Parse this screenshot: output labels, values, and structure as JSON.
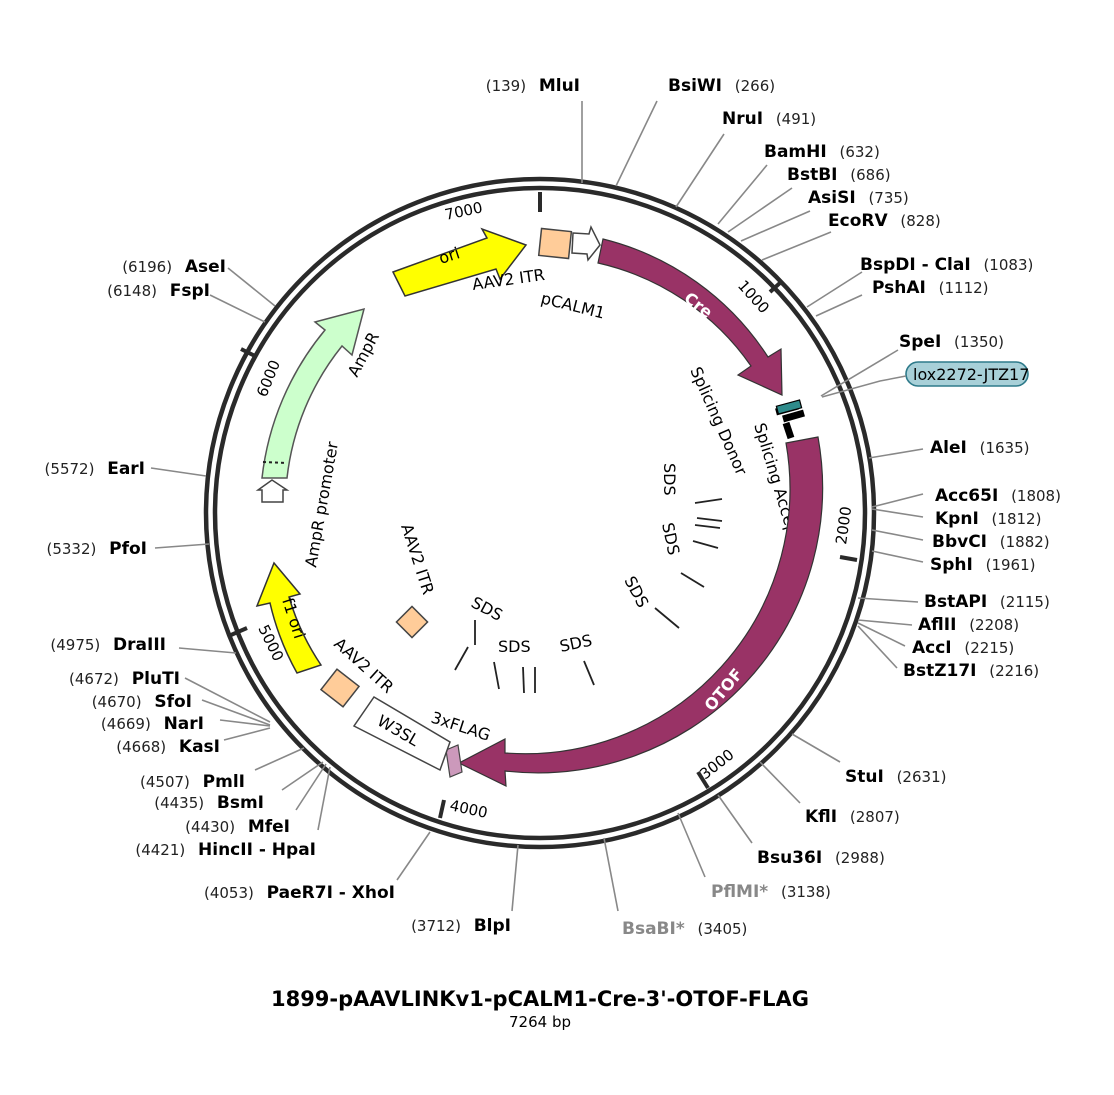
{
  "title": "1899-pAAVLINKv1-pCALM1-Cre-3'-OTOF-FLAG",
  "subtitle": "7264 bp",
  "total_bp": 7264,
  "ticks": [
    "1000",
    "2000",
    "3000",
    "4000",
    "5000",
    "6000",
    "7000"
  ],
  "colors": {
    "cre": "#993366",
    "otof": "#993366",
    "ori": "#ffff00",
    "f1_ori": "#ffff00",
    "ampr": "#ccffcc",
    "itr": "#ffcc99",
    "flag": "#cc99bb",
    "lox_box": "#a8d0d8",
    "enzyme_gray": "#888888"
  },
  "features": {
    "ori": "ori",
    "aav2_itr_top": "AAV2 ITR",
    "pcalm1": "pCALM1",
    "cre": "Cre",
    "lox": "lox2272-JTZ17",
    "splicing_donor": "Splicing Donor",
    "splicing_acceptor": "Splicing Acceptor",
    "otof": "OTOF",
    "flag": "3xFLAG",
    "w3sl": "W3SL",
    "aav2_itr_bottom": "AAV2 ITR",
    "f1_ori": "f1 ori",
    "ampr_promoter": "AmpR promoter",
    "ampr": "AmpR",
    "aav2_itr_inner": "AAV2 ITR",
    "sds": "SDS"
  },
  "enzymes": [
    {
      "name": "MluI",
      "pos": "(139)"
    },
    {
      "name": "BsiWI",
      "pos": "(266)"
    },
    {
      "name": "NruI",
      "pos": "(491)"
    },
    {
      "name": "BamHI",
      "pos": "(632)"
    },
    {
      "name": "BstBI",
      "pos": "(686)"
    },
    {
      "name": "AsiSI",
      "pos": "(735)"
    },
    {
      "name": "EcoRV",
      "pos": "(828)"
    },
    {
      "name": "BspDI - ClaI",
      "pos": "(1083)"
    },
    {
      "name": "PshAI",
      "pos": "(1112)"
    },
    {
      "name": "SpeI",
      "pos": "(1350)"
    },
    {
      "name": "AleI",
      "pos": "(1635)"
    },
    {
      "name": "Acc65I",
      "pos": "(1808)"
    },
    {
      "name": "KpnI",
      "pos": "(1812)"
    },
    {
      "name": "BbvCI",
      "pos": "(1882)"
    },
    {
      "name": "SphI",
      "pos": "(1961)"
    },
    {
      "name": "BstAPI",
      "pos": "(2115)"
    },
    {
      "name": "AflII",
      "pos": "(2208)"
    },
    {
      "name": "AccI",
      "pos": "(2215)"
    },
    {
      "name": "BstZ17I",
      "pos": "(2216)"
    },
    {
      "name": "StuI",
      "pos": "(2631)"
    },
    {
      "name": "KflI",
      "pos": "(2807)"
    },
    {
      "name": "Bsu36I",
      "pos": "(2988)"
    },
    {
      "name": "PflMI*",
      "pos": "(3138)"
    },
    {
      "name": "BsaBI*",
      "pos": "(3405)"
    },
    {
      "name": "BlpI",
      "pos": "(3712)"
    },
    {
      "name": "PaeR7I - XhoI",
      "pos": "(4053)"
    },
    {
      "name": "HincII - HpaI",
      "pos": "(4421)"
    },
    {
      "name": "MfeI",
      "pos": "(4430)"
    },
    {
      "name": "BsmI",
      "pos": "(4435)"
    },
    {
      "name": "PmlI",
      "pos": "(4507)"
    },
    {
      "name": "KasI",
      "pos": "(4668)"
    },
    {
      "name": "NarI",
      "pos": "(4669)"
    },
    {
      "name": "SfoI",
      "pos": "(4670)"
    },
    {
      "name": "PluTI",
      "pos": "(4672)"
    },
    {
      "name": "DraIII",
      "pos": "(4975)"
    },
    {
      "name": "PfoI",
      "pos": "(5332)"
    },
    {
      "name": "EarI",
      "pos": "(5572)"
    },
    {
      "name": "FspI",
      "pos": "(6148)"
    },
    {
      "name": "AseI",
      "pos": "(6196)"
    }
  ]
}
